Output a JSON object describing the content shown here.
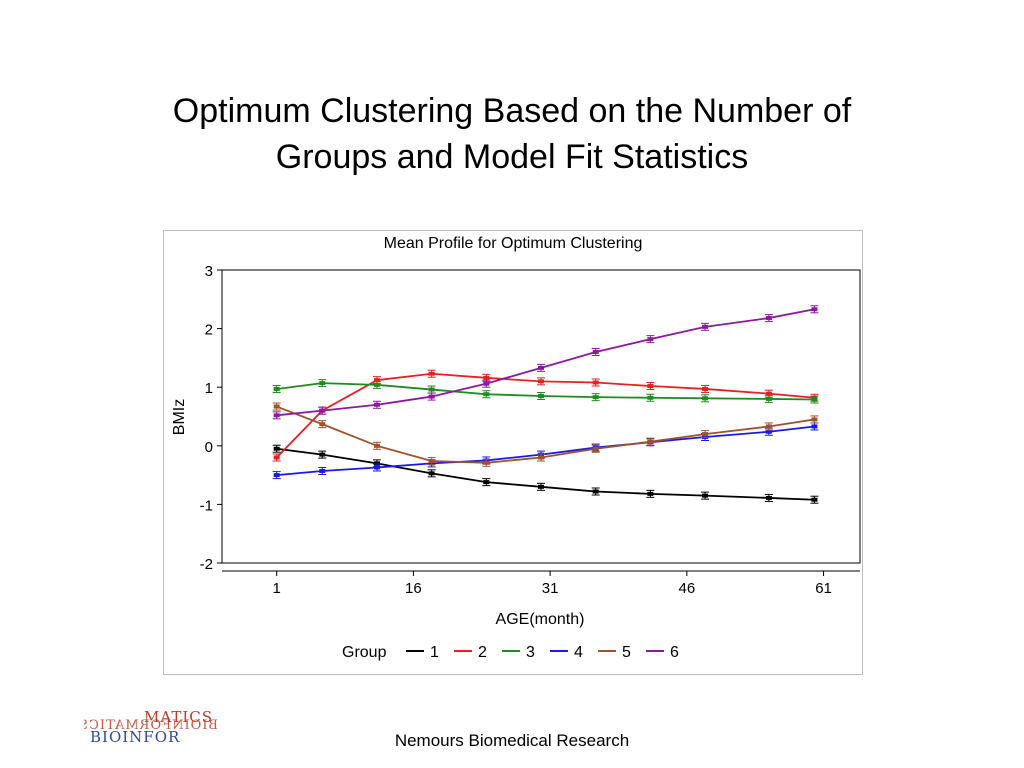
{
  "slide": {
    "title_line1": "Optimum Clustering Based on the Number of",
    "title_line2": "Groups and Model Fit Statistics",
    "footer": "Nemours Biomedical Research"
  },
  "logo": {
    "text_top": "MATICS",
    "text_bottom": "BIOINFOR",
    "mirror_text": "BIOINFORMATICS",
    "colors": [
      "#c0392b",
      "#2e4a9e"
    ]
  },
  "chart_data": {
    "type": "line",
    "title": "Mean Profile for Optimum Clustering",
    "xlabel": "AGE(month)",
    "ylabel": "BMIz",
    "xlim": [
      -5,
      65
    ],
    "ylim": [
      -2,
      3
    ],
    "xticks": [
      1,
      16,
      31,
      46,
      61
    ],
    "yticks": [
      -2,
      -1,
      0,
      1,
      2,
      3
    ],
    "grid": false,
    "legend_position": "bottom",
    "legend_title": "Group",
    "x": [
      1,
      6,
      12,
      18,
      24,
      30,
      36,
      42,
      48,
      55,
      60
    ],
    "series": [
      {
        "name": "1",
        "color": "#000000",
        "values": [
          -0.05,
          -0.15,
          -0.3,
          -0.47,
          -0.62,
          -0.7,
          -0.78,
          -0.82,
          -0.85,
          -0.89,
          -0.92
        ]
      },
      {
        "name": "2",
        "color": "#e8201f",
        "values": [
          -0.2,
          0.6,
          1.12,
          1.23,
          1.16,
          1.1,
          1.08,
          1.02,
          0.97,
          0.89,
          0.82
        ]
      },
      {
        "name": "3",
        "color": "#1e8c1e",
        "values": [
          0.97,
          1.07,
          1.04,
          0.96,
          0.88,
          0.85,
          0.83,
          0.82,
          0.81,
          0.8,
          0.79
        ]
      },
      {
        "name": "4",
        "color": "#1a1ae8",
        "values": [
          -0.5,
          -0.43,
          -0.37,
          -0.3,
          -0.25,
          -0.15,
          -0.03,
          0.06,
          0.15,
          0.24,
          0.33
        ]
      },
      {
        "name": "5",
        "color": "#a0522d",
        "values": [
          0.67,
          0.37,
          0.0,
          -0.26,
          -0.29,
          -0.2,
          -0.05,
          0.07,
          0.2,
          0.33,
          0.45
        ]
      },
      {
        "name": "6",
        "color": "#8b1a9e",
        "values": [
          0.52,
          0.6,
          0.7,
          0.84,
          1.06,
          1.33,
          1.6,
          1.82,
          2.03,
          2.18,
          2.33
        ]
      }
    ]
  }
}
